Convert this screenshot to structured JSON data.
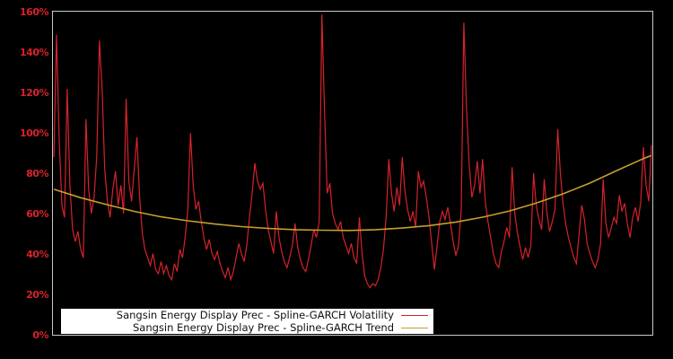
{
  "colors": {
    "background": "#000000",
    "plot_border": "#c9c9c9",
    "tick_label": "#d8222a",
    "volatility_line": "#d4232b",
    "trend_line": "#c79f2c",
    "legend_bg": "#ffffff",
    "legend_text": "#111111"
  },
  "legend": {
    "items": [
      {
        "label": "Sangsin Energy Display Prec - Spline-GARCH Volatility",
        "color": "#d4232b"
      },
      {
        "label": "Sangsin Energy Display Prec - Spline-GARCH Trend",
        "color": "#c79f2c"
      }
    ]
  },
  "chart_data": {
    "type": "line",
    "title": "",
    "xlabel": "",
    "ylabel": "",
    "x_axis": {
      "tick_labels": []
    },
    "y_axis": {
      "unit": "%",
      "range": [
        0,
        160
      ],
      "ticks": [
        {
          "label": "0%",
          "value": 0
        },
        {
          "label": "20%",
          "value": 20
        },
        {
          "label": "40%",
          "value": 40
        },
        {
          "label": "60%",
          "value": 60
        },
        {
          "label": "80%",
          "value": 80
        },
        {
          "label": "100%",
          "value": 100
        },
        {
          "label": "120%",
          "value": 120
        },
        {
          "label": "140%",
          "value": 140
        },
        {
          "label": "160%",
          "value": 160
        }
      ]
    },
    "grid": false,
    "legend_position": "bottom-center",
    "series": [
      {
        "name": "Sangsin Energy Display Prec - Spline-GARCH Volatility",
        "color": "#d4232b",
        "unit": "%",
        "values": [
          88,
          149,
          96,
          64,
          58,
          122,
          74,
          52,
          46,
          51,
          42,
          38,
          107,
          72,
          60,
          68,
          88,
          146,
          122,
          82,
          66,
          58,
          72,
          81,
          64,
          74,
          60,
          117,
          76,
          66,
          82,
          98,
          68,
          50,
          42,
          38,
          34,
          40,
          32,
          30,
          36,
          30,
          34,
          29,
          27,
          35,
          31,
          42,
          38,
          48,
          62,
          100,
          74,
          62,
          66,
          56,
          48,
          42,
          47,
          40,
          37,
          41,
          35,
          31,
          28,
          33,
          27,
          31,
          38,
          45,
          40,
          36,
          44,
          58,
          70,
          85,
          76,
          72,
          75,
          62,
          52,
          46,
          40,
          61,
          48,
          41,
          36,
          33,
          38,
          44,
          55,
          43,
          37,
          33,
          31,
          37,
          44,
          52,
          48,
          56,
          159,
          112,
          70,
          75,
          60,
          55,
          52,
          56,
          48,
          44,
          40,
          45,
          38,
          35,
          58,
          40,
          29,
          25,
          23,
          25,
          24,
          27,
          33,
          42,
          58,
          87,
          70,
          61,
          73,
          64,
          88,
          71,
          62,
          56,
          61,
          53,
          81,
          73,
          76,
          68,
          58,
          45,
          32,
          44,
          56,
          61,
          57,
          63,
          55,
          46,
          39,
          44,
          62,
          155,
          112,
          84,
          68,
          74,
          86,
          70,
          87,
          66,
          56,
          48,
          40,
          35,
          33,
          41,
          46,
          53,
          48,
          83,
          60,
          50,
          43,
          37,
          43,
          38,
          44,
          80,
          64,
          57,
          52,
          77,
          60,
          51,
          56,
          62,
          102,
          80,
          65,
          55,
          48,
          43,
          38,
          35,
          50,
          64,
          57,
          45,
          40,
          36,
          33,
          37,
          45,
          77,
          55,
          48,
          53,
          58,
          55,
          69,
          61,
          65,
          55,
          48,
          58,
          63,
          56,
          66,
          93,
          74,
          66,
          94
        ]
      },
      {
        "name": "Sangsin Energy Display Prec - Spline-GARCH Trend",
        "color": "#c79f2c",
        "unit": "%",
        "x_index": [
          0,
          10,
          20,
          30,
          40,
          50,
          60,
          70,
          80,
          90,
          100,
          110,
          120,
          130,
          140,
          150,
          160,
          170,
          180,
          190,
          200,
          210,
          220,
          223
        ],
        "values": [
          72.0,
          67.8,
          64.3,
          61.0,
          58.3,
          56.3,
          54.7,
          53.4,
          52.5,
          51.9,
          51.6,
          51.5,
          51.9,
          52.7,
          53.9,
          55.7,
          58.1,
          61.2,
          65.1,
          69.7,
          75.1,
          81.3,
          87.3,
          88.8
        ]
      }
    ]
  }
}
